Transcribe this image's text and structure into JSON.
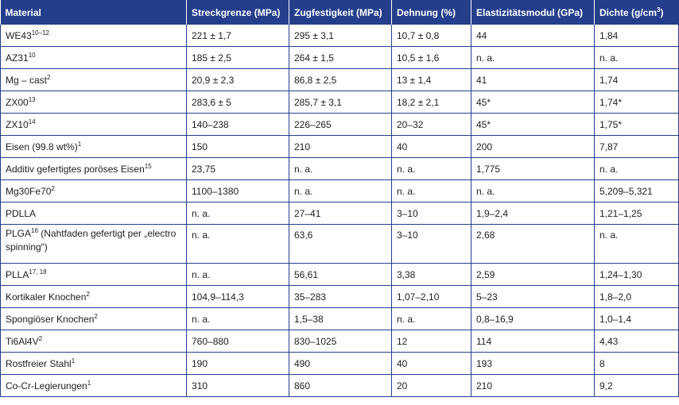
{
  "header": {
    "material": "Material",
    "yield_strength_prefix": "Streckgrenze (MPa)",
    "tensile_strength": "Zugfestigkeit (MPa)",
    "elongation": "Dehnung (%)",
    "modulus": "Elastizitätsmodul (GPa)",
    "density_prefix": "Dichte (g/cm",
    "density_sup": "3",
    "density_suffix": ")"
  },
  "rows": [
    {
      "name": "WE43",
      "ref": "10–12",
      "yield": "221 ± 1,7",
      "tensile": "295 ± 3,1",
      "elong": "10,7 ± 0,8",
      "modulus": "44",
      "density": "1,84"
    },
    {
      "name": "AZ31",
      "ref": "10",
      "yield": "185 ± 2,5",
      "tensile": "264 ± 1,5",
      "elong": "10,5 ± 1,6",
      "modulus": "n. a.",
      "density": "n. a."
    },
    {
      "name": "Mg – cast",
      "ref": "2",
      "yield": "20,9 ± 2,3",
      "tensile": "86,8 ± 2,5",
      "elong": "13 ± 1,4",
      "modulus": "41",
      "density": "1,74"
    },
    {
      "name": "ZX00",
      "ref": "13",
      "yield": "283,6 ± 5",
      "tensile": "285,7 ± 3,1",
      "elong": "18,2 ± 2,1",
      "modulus": "45*",
      "density": "1,74*"
    },
    {
      "name": "ZX10",
      "ref": "14",
      "yield": "140–238",
      "tensile": "226–265",
      "elong": "20–32",
      "modulus": "45*",
      "density": "1,75*"
    },
    {
      "name": "Eisen (99.8 wt%)",
      "ref": "1",
      "yield": "150",
      "tensile": "210",
      "elong": "40",
      "modulus": "200",
      "density": "7,87"
    },
    {
      "name": "Additiv gefertigtes poröses Eisen",
      "ref": "15",
      "yield": "23,75",
      "tensile": "n. a.",
      "elong": "n. a.",
      "modulus": "1,775",
      "density": "n. a."
    },
    {
      "name": "Mg30Fe70",
      "ref": "2",
      "yield": "1100–1380",
      "tensile": "n. a.",
      "elong": "n. a.",
      "modulus": "n. a.",
      "density": "5,209–5,321"
    },
    {
      "name": "PDLLA",
      "ref": "",
      "yield": "n. a.",
      "tensile": "27–41",
      "elong": "3–10",
      "modulus": "1,9–2,4",
      "density": "1,21–1,25"
    },
    {
      "name": "PLGA",
      "ref": "16",
      "name_suffix": " (Nahtfaden gefertigt per „electro spinning“)",
      "yield": "n. a.",
      "tensile": "63,6",
      "elong": "3–10",
      "modulus": "2,68",
      "density": "n. a."
    },
    {
      "name": "PLLA",
      "ref": "17, 18",
      "yield": "n. a.",
      "tensile": "56,61",
      "elong": "3,38",
      "modulus": "2,59",
      "density": "1,24–1,30"
    },
    {
      "name": "Kortikaler Knochen",
      "ref": "2",
      "yield": "104,9–114,3",
      "tensile": "35–283",
      "elong": "1,07–2,10",
      "modulus": "5–23",
      "density": "1,8–2,0"
    },
    {
      "name": "Spongiöser Knochen",
      "ref": "2",
      "yield": "n. a.",
      "tensile": "1,5–38",
      "elong": "n. a.",
      "modulus": "0,8–16,9",
      "density": "1,0–1,4"
    },
    {
      "name": "Ti6Al4V",
      "ref": "2",
      "yield": "760–880",
      "tensile": "830–1025",
      "elong": "12",
      "modulus": "114",
      "density": "4,43"
    },
    {
      "name": "Rostfreier Stahl",
      "ref": "1",
      "yield": "190",
      "tensile": "490",
      "elong": "40",
      "modulus": "193",
      "density": "8"
    },
    {
      "name": "Co-Cr-Legierungen",
      "ref": "1",
      "yield": "310",
      "tensile": "860",
      "elong": "20",
      "modulus": "210",
      "density": "9,2"
    }
  ]
}
